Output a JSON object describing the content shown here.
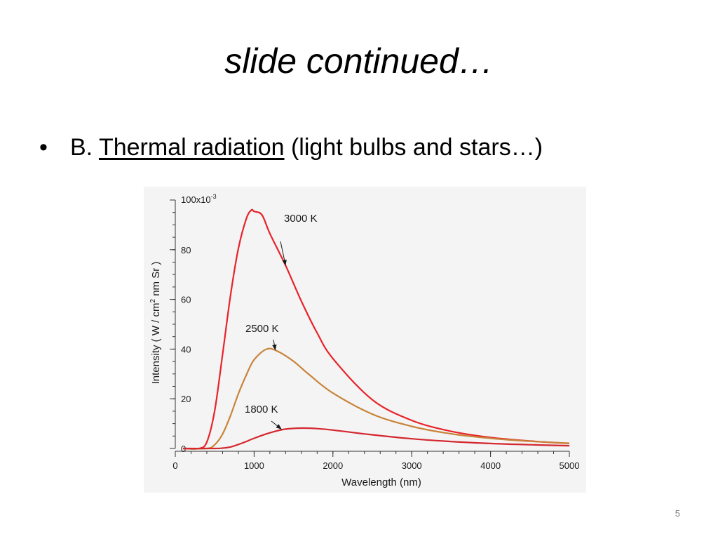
{
  "slide": {
    "title": "slide continued…",
    "bullet": {
      "marker": "•",
      "prefix": "B. ",
      "term": "Thermal radiation",
      "suffix": " (light bulbs and stars…)"
    },
    "page_number": "5"
  },
  "chart_data": {
    "type": "line",
    "title": "",
    "xlabel": "Wavelength (nm)",
    "ylabel": "Intensity ( W / cm",
    "ylabel_superscript": "2",
    "ylabel_tail": " nm Sr )",
    "y_top_tick_mantissa": "100x10",
    "y_top_tick_exponent": "-3",
    "xlim": [
      0,
      5000
    ],
    "ylim": [
      0,
      0.1
    ],
    "x_ticks": [
      0,
      1000,
      2000,
      3000,
      4000,
      5000
    ],
    "x_tick_labels": [
      "0",
      "1000",
      "2000",
      "3000",
      "4000",
      "5000"
    ],
    "y_ticks": [
      0,
      0.02,
      0.04,
      0.06,
      0.08
    ],
    "y_tick_labels": [
      "0",
      "20",
      "40",
      "60",
      "80"
    ],
    "grid": false,
    "colors": {
      "3000 K": "#e8232a",
      "2500 K": "#c8843a",
      "1800 K": "#d4282f"
    },
    "series": [
      {
        "name": "3000 K",
        "x": [
          100,
          300,
          400,
          500,
          600,
          700,
          800,
          900,
          966,
          1000,
          1100,
          1200,
          1400,
          1600,
          1800,
          2000,
          2500,
          3000,
          3500,
          4000,
          4500,
          5000
        ],
        "y": [
          0.0,
          0.0,
          0.0026,
          0.0152,
          0.0378,
          0.0615,
          0.0804,
          0.0924,
          0.096,
          0.0954,
          0.094,
          0.0865,
          0.0736,
          0.0593,
          0.0465,
          0.0362,
          0.0196,
          0.0113,
          0.0069,
          0.0044,
          0.003,
          0.002
        ]
      },
      {
        "name": "2500 K",
        "x": [
          100,
          400,
          500,
          600,
          700,
          800,
          900,
          1000,
          1159,
          1300,
          1500,
          1700,
          2000,
          2500,
          3000,
          3500,
          4000,
          4500,
          5000
        ],
        "y": [
          0.0,
          0.0,
          0.0015,
          0.0058,
          0.0132,
          0.022,
          0.0295,
          0.0357,
          0.04,
          0.0391,
          0.0351,
          0.0297,
          0.0223,
          0.0138,
          0.0089,
          0.0059,
          0.0041,
          0.0029,
          0.0021
        ]
      },
      {
        "name": "1800 K",
        "x": [
          100,
          500,
          600,
          700,
          800,
          900,
          1000,
          1200,
          1400,
          1610,
          1800,
          2000,
          2500,
          3000,
          3500,
          4000,
          4500,
          5000
        ],
        "y": [
          0.0,
          0.0,
          0.00015,
          0.0006,
          0.0016,
          0.0028,
          0.0041,
          0.0063,
          0.0078,
          0.0082,
          0.008,
          0.0074,
          0.0055,
          0.0039,
          0.0028,
          0.002,
          0.0015,
          0.0011
        ]
      }
    ],
    "annotations": [
      {
        "text": "3000 K",
        "series": "3000 K",
        "point": [
          1400,
          0.0736
        ]
      },
      {
        "text": "2500 K",
        "series": "2500 K",
        "point": [
          1270,
          0.0395
        ]
      },
      {
        "text": "1800 K",
        "series": "1800 K",
        "point": [
          1350,
          0.0077
        ]
      }
    ]
  }
}
